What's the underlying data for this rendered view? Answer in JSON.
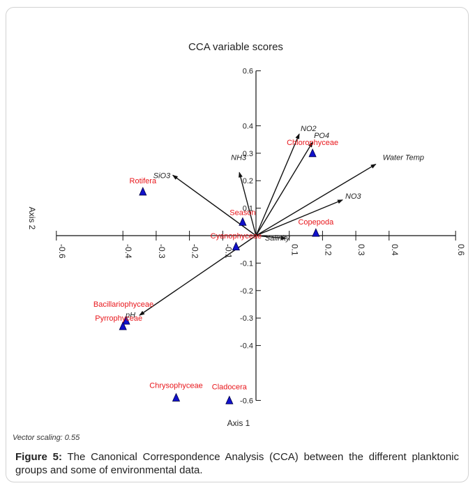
{
  "chart_data": {
    "type": "scatter",
    "title": "CCA variable scores",
    "xlabel": "Axis 1",
    "ylabel": "Axis 2",
    "xlim": [
      -0.6,
      0.6
    ],
    "ylim": [
      -0.6,
      0.6
    ],
    "x_ticks": [
      "-0.6",
      "-0.4",
      "-0.3",
      "-0.2",
      "-0.1",
      "0.1",
      "0.2",
      "0.3",
      "0.4",
      "0.6"
    ],
    "y_ticks": [
      "0.6",
      "0.4",
      "0.3",
      "0.2",
      "0.1",
      "-0.1",
      "-0.2",
      "-0.3",
      "-0.4",
      "-0.6"
    ],
    "species": [
      {
        "name": "Rotifera",
        "x": -0.34,
        "y": 0.16
      },
      {
        "name": "Chlorophyceae",
        "x": 0.17,
        "y": 0.3
      },
      {
        "name": "Season",
        "x": -0.04,
        "y": 0.05
      },
      {
        "name": "Copepoda",
        "x": 0.18,
        "y": 0.01
      },
      {
        "name": "Cyanophyceae",
        "x": -0.06,
        "y": -0.04
      },
      {
        "name": "Bacillariophyceae",
        "x": -0.39,
        "y": -0.31
      },
      {
        "name": "Pyrrophyceae",
        "x": -0.4,
        "y": -0.33
      },
      {
        "name": "Chrysophyceae",
        "x": -0.24,
        "y": -0.59
      },
      {
        "name": "Cladocera",
        "x": -0.08,
        "y": -0.6
      }
    ],
    "vectors": [
      {
        "name": "NO2",
        "x": 0.13,
        "y": 0.37
      },
      {
        "name": "PO4",
        "x": 0.17,
        "y": 0.34
      },
      {
        "name": "Water Temp",
        "x": 0.36,
        "y": 0.26
      },
      {
        "name": "NO3",
        "x": 0.26,
        "y": 0.13
      },
      {
        "name": "NH3",
        "x": -0.05,
        "y": 0.23
      },
      {
        "name": "SiO3",
        "x": -0.25,
        "y": 0.22
      },
      {
        "name": "Salinity",
        "x": 0.09,
        "y": -0.01
      },
      {
        "name": "pH",
        "x": -0.35,
        "y": -0.29
      }
    ],
    "colors": {
      "species_label": "#e8161b",
      "marker": "#1111cc",
      "vector": "#111111"
    }
  },
  "vector_scaling_text": "Vector scaling: 0.55",
  "caption": {
    "label": "Figure 5:",
    "text": " The Canonical Correspondence Analysis (CCA) between the different planktonic groups and some of environmental data."
  }
}
